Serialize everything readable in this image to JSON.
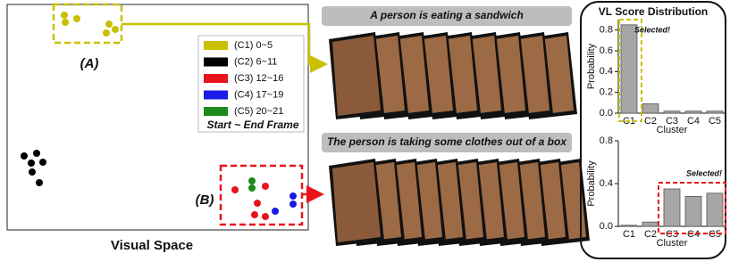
{
  "visual_space": {
    "title": "Visual Space",
    "group_a": "(A)",
    "group_b": "(B)",
    "legend": {
      "items": [
        {
          "label": "(C1) 0~5",
          "color": "#c8c000"
        },
        {
          "label": "(C2) 6~11",
          "color": "#000000"
        },
        {
          "label": "(C3) 12~16",
          "color": "#e8141c"
        },
        {
          "label": "(C4) 17~19",
          "color": "#1a1ae6"
        },
        {
          "label": "(C5) 20~21",
          "color": "#1a8a1a"
        }
      ],
      "note": "Start ~ End Frame"
    }
  },
  "captions": [
    "A person is eating a sandwich",
    "The person is taking some clothes out of a box"
  ],
  "panel_title": "VL Score Distribution",
  "chart_data": [
    {
      "type": "bar",
      "ylabel": "Probability",
      "xlabel": "Cluster",
      "annotation": "Selected!",
      "categories": [
        "C1",
        "C2",
        "C3",
        "C4",
        "C5"
      ],
      "values": [
        0.85,
        0.09,
        0.02,
        0.02,
        0.02
      ],
      "color": "#a6a6a6",
      "ylim": [
        0,
        0.9
      ],
      "yticks": [
        {
          "value": 0,
          "label": "0.0"
        },
        0.2,
        0.4,
        0.6,
        0.8
      ],
      "highlight_color": "#c8c000"
    },
    {
      "type": "bar",
      "ylabel": "Probability",
      "xlabel": "Cluster",
      "annotation": "Selected!",
      "categories": [
        "C1",
        "C2",
        "C3",
        "C4",
        "C5"
      ],
      "values": [
        0.01,
        0.04,
        0.35,
        0.28,
        0.31
      ],
      "color": "#a6a6a6",
      "ylim": [
        0,
        0.8
      ],
      "yticks": [
        {
          "value": 0,
          "label": "0.0"
        },
        0.4,
        0.8
      ],
      "highlight_color": "#e8141c"
    }
  ]
}
